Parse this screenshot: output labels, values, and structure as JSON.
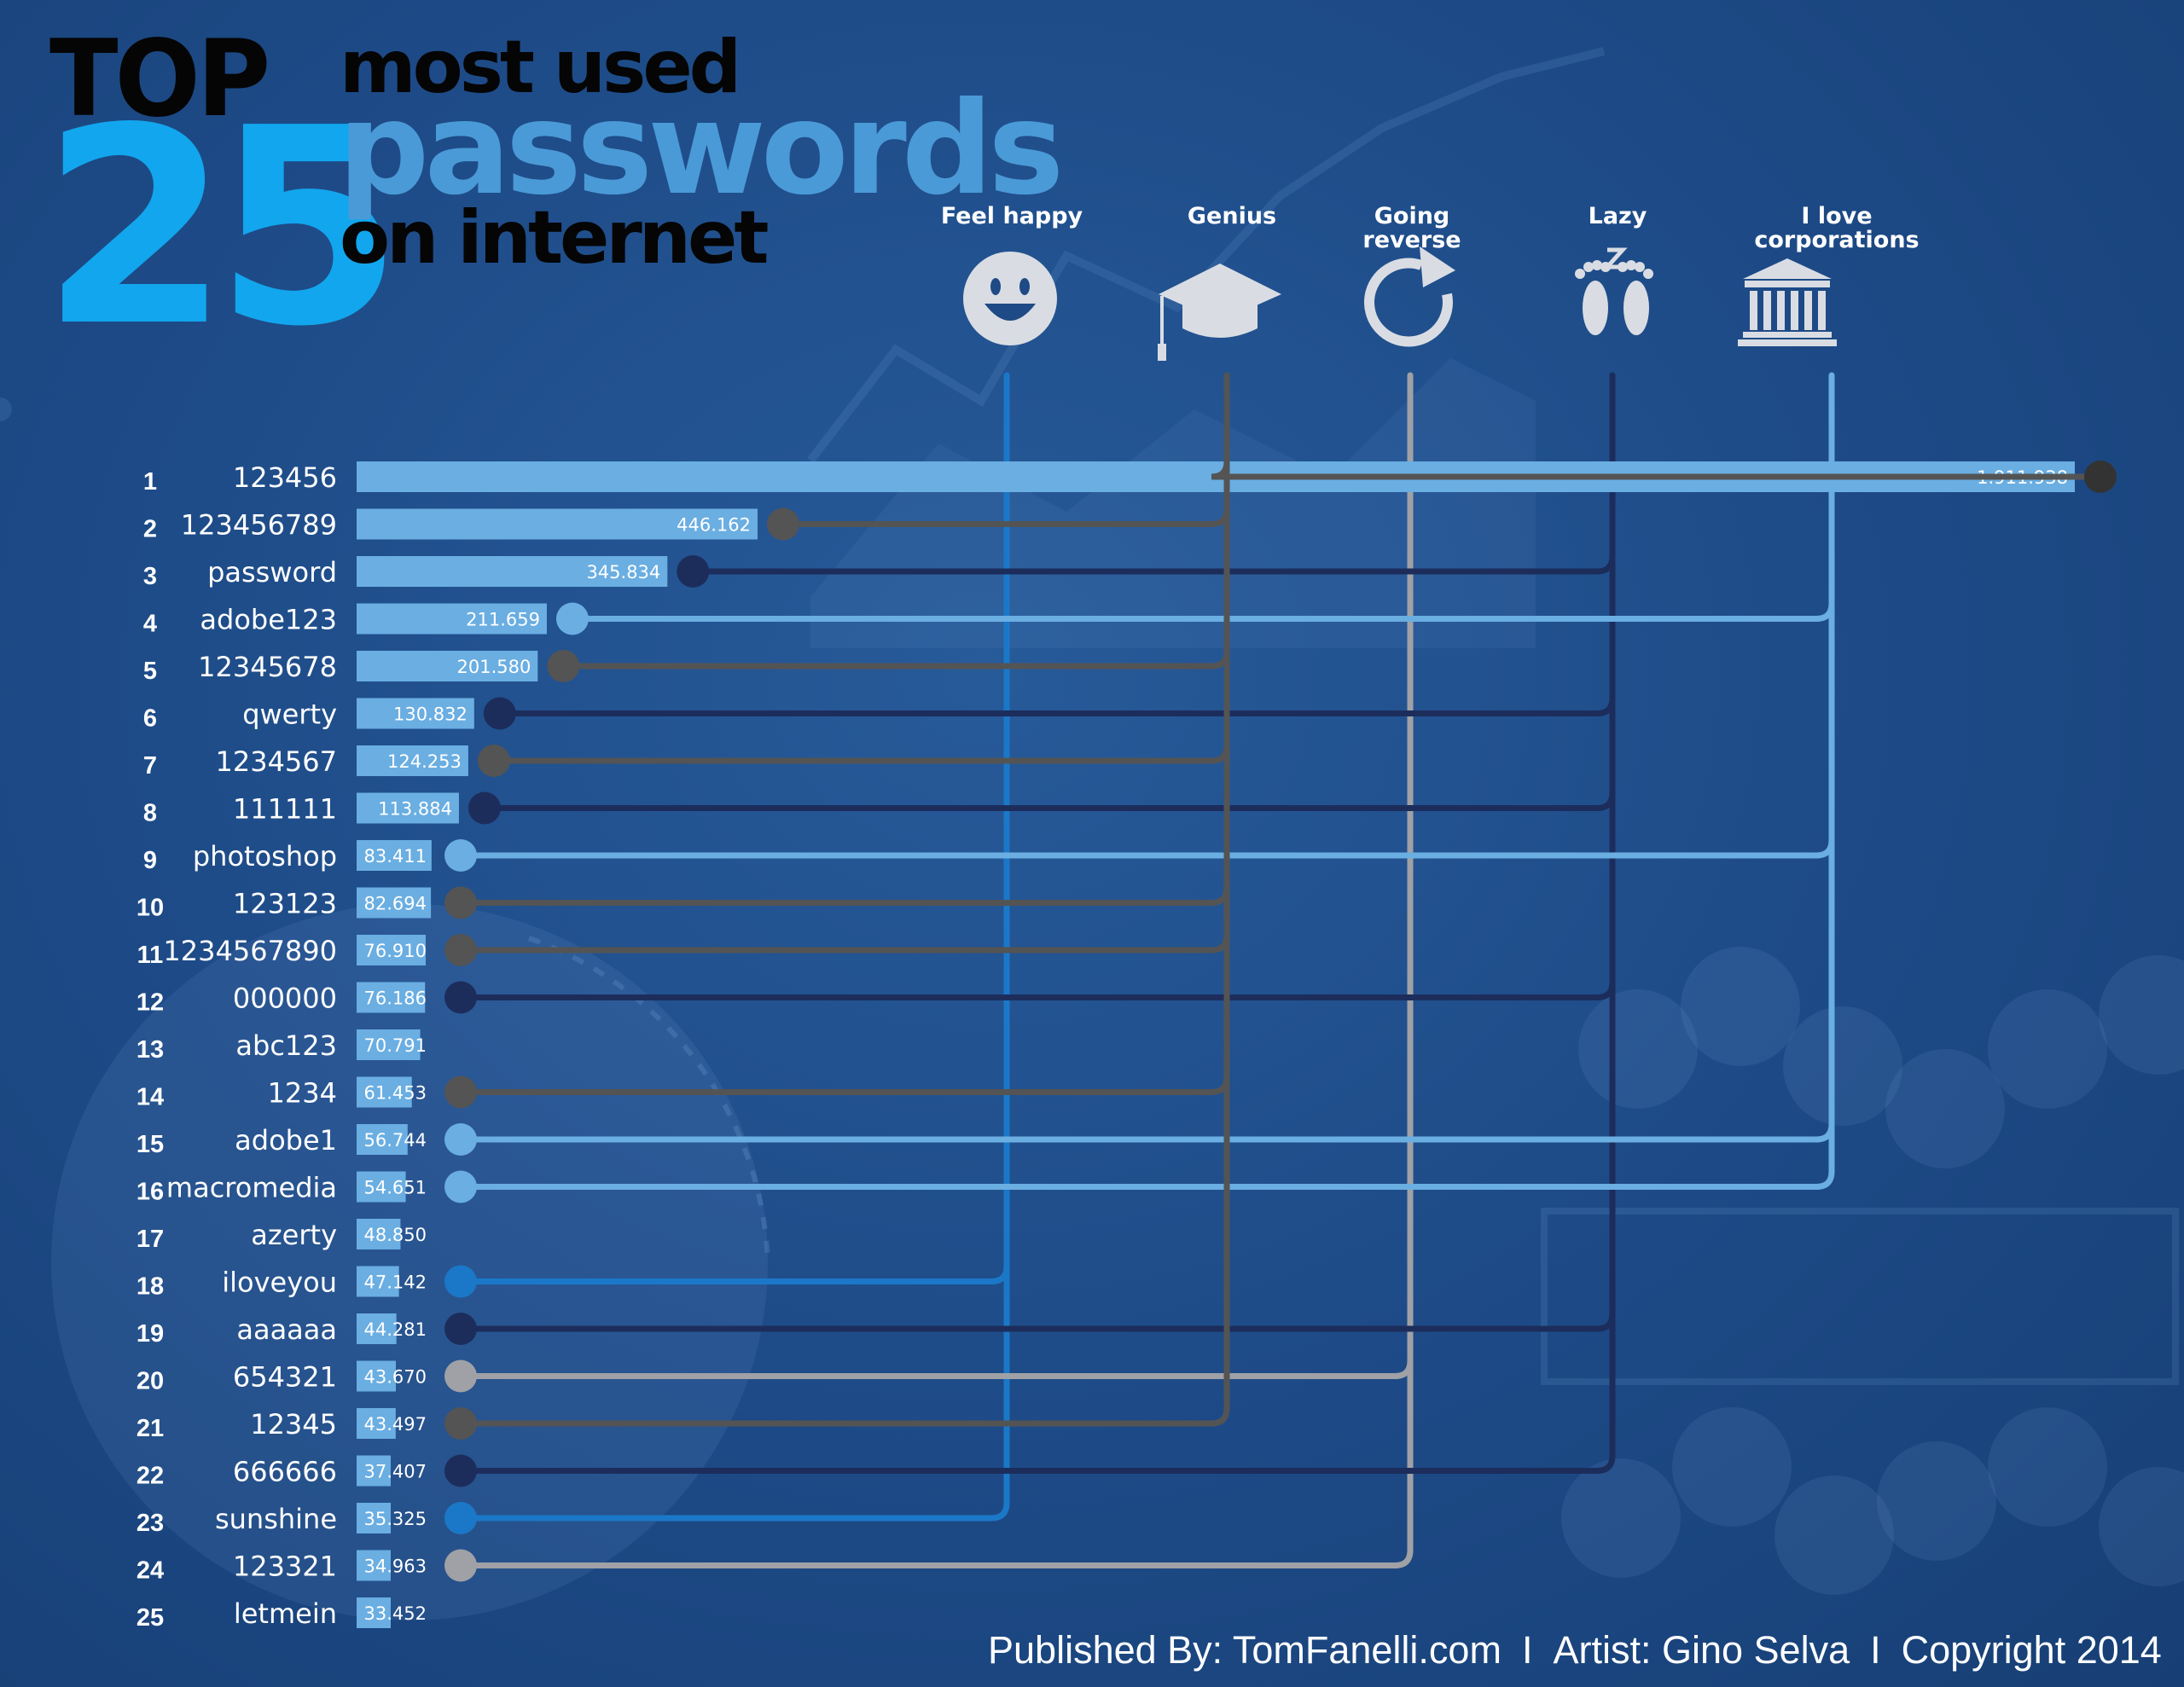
{
  "title": {
    "top": "TOP",
    "number": "25",
    "line1": "most used",
    "line2": "passwords",
    "line3": "on internet"
  },
  "categories": [
    {
      "key": "happy",
      "label_lines": [
        "Feel happy"
      ],
      "icon": "smiley-face-icon",
      "color": "#1b78c8"
    },
    {
      "key": "genius",
      "label_lines": [
        "Genius"
      ],
      "icon": "graduation-cap-icon",
      "color": "#545454"
    },
    {
      "key": "reverse",
      "label_lines": [
        "Going",
        "reverse"
      ],
      "icon": "circular-arrow-icon",
      "color": "#9fa1a6"
    },
    {
      "key": "lazy",
      "label_lines": [
        "Lazy"
      ],
      "icon": "sleeping-feet-icon",
      "color": "#1c2d5c"
    },
    {
      "key": "corp",
      "label_lines": [
        "I love",
        "corporations"
      ],
      "icon": "bank-building-icon",
      "color": "#6aaee2"
    }
  ],
  "colors": {
    "background": "#1e4a85",
    "bar": "#6aaee2",
    "title_blue": "#12a6ee",
    "title_black": "#050505",
    "text": "#ffffff",
    "dot_genius_top": "#333333"
  },
  "chart_data": {
    "type": "bar",
    "orientation": "horizontal",
    "ranks": [
      1,
      2,
      3,
      4,
      5,
      6,
      7,
      8,
      9,
      10,
      11,
      12,
      13,
      14,
      15,
      16,
      17,
      18,
      19,
      20,
      21,
      22,
      23,
      24,
      25
    ],
    "categories": [
      "123456",
      "123456789",
      "password",
      "adobe123",
      "12345678",
      "qwerty",
      "1234567",
      "111111",
      "photoshop",
      "123123",
      "1234567890",
      "000000",
      "abc123",
      "1234",
      "adobe1",
      "macromedia",
      "azerty",
      "iloveyou",
      "aaaaaa",
      "654321",
      "12345",
      "666666",
      "sunshine",
      "123321",
      "letmein"
    ],
    "values": [
      1911938,
      446162,
      345834,
      211659,
      201580,
      130832,
      124253,
      113884,
      83411,
      82694,
      76910,
      76186,
      70791,
      61453,
      56744,
      54651,
      48850,
      47142,
      44281,
      43670,
      43497,
      37407,
      35325,
      34963,
      33452
    ],
    "value_labels": [
      "1.911.938",
      "446.162",
      "345.834",
      "211.659",
      "201.580",
      "130.832",
      "124.253",
      "113.884",
      "83.411",
      "82.694",
      "76.910",
      "76.186",
      "70.791",
      "61.453",
      "56.744",
      "54.651",
      "48.850",
      "47.142",
      "44.281",
      "43.670",
      "43.497",
      "37.407",
      "35.325",
      "34.963",
      "33.452"
    ],
    "category_assignment": [
      "genius",
      "genius",
      "lazy",
      "corp",
      "genius",
      "lazy",
      "genius",
      "lazy",
      "corp",
      "genius",
      "genius",
      "lazy",
      null,
      "genius",
      "corp",
      "corp",
      null,
      "happy",
      "lazy",
      "reverse",
      "genius",
      "lazy",
      "happy",
      "reverse",
      null
    ]
  },
  "footer": {
    "published": "Published By: TomFanelli.com",
    "separator": "I",
    "artist": "Artist: Gino Selva",
    "copyright": "Copyright 2014"
  }
}
